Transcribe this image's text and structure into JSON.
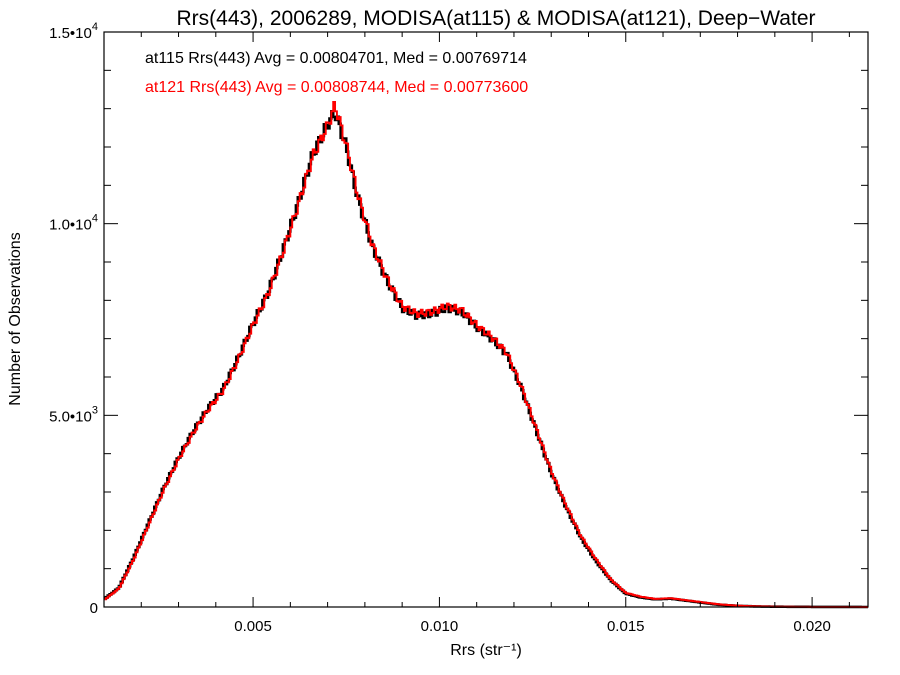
{
  "chart_data": {
    "type": "line",
    "title": "Rrs(443), 2006289, MODISA(at115) & MODISA(at121), Deep−Water",
    "xlabel": "Rrs (str⁻¹)",
    "ylabel": "Number of Observations",
    "xlim": [
      0.001,
      0.0215
    ],
    "ylim": [
      0,
      15000
    ],
    "x_ticks": [
      {
        "value": 0.005,
        "label": "0.005"
      },
      {
        "value": 0.01,
        "label": "0.010"
      },
      {
        "value": 0.015,
        "label": "0.015"
      },
      {
        "value": 0.02,
        "label": "0.020"
      }
    ],
    "y_ticks": [
      {
        "value": 0,
        "label": "0"
      },
      {
        "value": 5000,
        "mantissa": "5.0•10",
        "exponent": "3"
      },
      {
        "value": 10000,
        "mantissa": "1.0•10",
        "exponent": "4"
      },
      {
        "value": 15000,
        "mantissa": "1.5•10",
        "exponent": "4"
      }
    ],
    "grid": false,
    "legend_position": "top-left",
    "series": [
      {
        "name": "at115",
        "color": "#000000",
        "stats_label": "at115 Rrs(443) Avg = 0.00804701, Med = 0.00769714",
        "x": [
          0.001,
          0.0014,
          0.0018,
          0.0022,
          0.0026,
          0.003,
          0.0034,
          0.0038,
          0.0042,
          0.0046,
          0.005,
          0.0054,
          0.0058,
          0.0062,
          0.0066,
          0.007,
          0.0072,
          0.0075,
          0.0078,
          0.0082,
          0.0086,
          0.009,
          0.0094,
          0.0098,
          0.0102,
          0.0106,
          0.011,
          0.0114,
          0.0118,
          0.0122,
          0.0126,
          0.013,
          0.0134,
          0.0138,
          0.0142,
          0.0146,
          0.015,
          0.0154,
          0.0158,
          0.0162,
          0.0166,
          0.017,
          0.0175,
          0.018,
          0.0185,
          0.019,
          0.02,
          0.0215
        ],
        "y": [
          200,
          500,
          1300,
          2200,
          3100,
          3900,
          4600,
          5200,
          5700,
          6500,
          7400,
          8200,
          9300,
          10500,
          11800,
          12600,
          12900,
          12000,
          10700,
          9400,
          8500,
          7800,
          7600,
          7650,
          7800,
          7700,
          7300,
          7000,
          6600,
          5700,
          4600,
          3500,
          2600,
          1800,
          1200,
          700,
          350,
          250,
          200,
          220,
          170,
          120,
          60,
          30,
          15,
          8,
          3,
          0
        ]
      },
      {
        "name": "at121",
        "color": "#ff0000",
        "stats_label": "at121 Rrs(443) Avg = 0.00808744, Med = 0.00773600",
        "x": [
          0.001,
          0.0014,
          0.0018,
          0.0022,
          0.0026,
          0.003,
          0.0034,
          0.0038,
          0.0042,
          0.0046,
          0.005,
          0.0054,
          0.0058,
          0.0062,
          0.0066,
          0.007,
          0.0072,
          0.0075,
          0.0078,
          0.0082,
          0.0086,
          0.009,
          0.0094,
          0.0098,
          0.0102,
          0.0106,
          0.011,
          0.0114,
          0.0118,
          0.0122,
          0.0126,
          0.013,
          0.0134,
          0.0138,
          0.0142,
          0.0146,
          0.015,
          0.0154,
          0.0158,
          0.0162,
          0.0166,
          0.017,
          0.0175,
          0.018,
          0.0185,
          0.019,
          0.02,
          0.0215
        ],
        "y": [
          180,
          480,
          1250,
          2150,
          3050,
          3850,
          4550,
          5150,
          5650,
          6450,
          7350,
          8150,
          9250,
          10450,
          11750,
          12550,
          13100,
          12050,
          10800,
          9450,
          8550,
          7850,
          7650,
          7700,
          7850,
          7750,
          7350,
          7050,
          6650,
          5750,
          4650,
          3550,
          2650,
          1850,
          1250,
          720,
          370,
          270,
          210,
          230,
          180,
          130,
          70,
          35,
          18,
          9,
          3,
          0
        ]
      }
    ]
  }
}
